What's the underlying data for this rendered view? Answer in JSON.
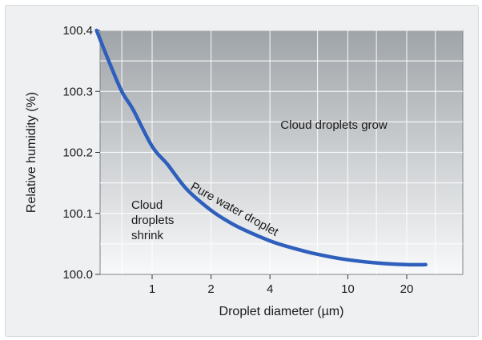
{
  "chart_data": {
    "type": "line",
    "xlabel": "Droplet diameter (µm)",
    "ylabel": "Relative humidity (%)",
    "x_scale": "log",
    "xlim": [
      0.5,
      30
    ],
    "ylim": [
      100.0,
      100.4
    ],
    "x_ticks": [
      1,
      2,
      4,
      10,
      20
    ],
    "x_tick_labels": [
      "1",
      "2",
      "4",
      "10",
      "20"
    ],
    "y_ticks": [
      100.0,
      100.1,
      100.2,
      100.3,
      100.4
    ],
    "y_tick_labels": [
      "100.0",
      "100.1",
      "100.2",
      "100.3",
      "100.4"
    ],
    "grid": true,
    "series": [
      {
        "name": "Pure water droplet",
        "color": "#2f5fbd",
        "x": [
          0.52,
          0.6,
          0.7,
          0.8,
          1.0,
          1.2,
          1.5,
          2.0,
          2.5,
          3.0,
          4.0,
          5.0,
          7.0,
          10.0,
          15.0,
          20.0,
          25.0
        ],
        "y": [
          100.4,
          100.35,
          100.3,
          100.27,
          100.21,
          100.18,
          100.14,
          100.105,
          100.085,
          100.072,
          100.055,
          100.045,
          100.033,
          100.024,
          100.018,
          100.016,
          100.016
        ]
      }
    ],
    "annotations": [
      {
        "id": "grow",
        "lines": [
          "Cloud droplets grow"
        ]
      },
      {
        "id": "shrink",
        "lines": [
          "Cloud",
          "droplets",
          "shrink"
        ]
      },
      {
        "id": "curve",
        "lines": [
          "Pure water droplet"
        ]
      }
    ]
  }
}
